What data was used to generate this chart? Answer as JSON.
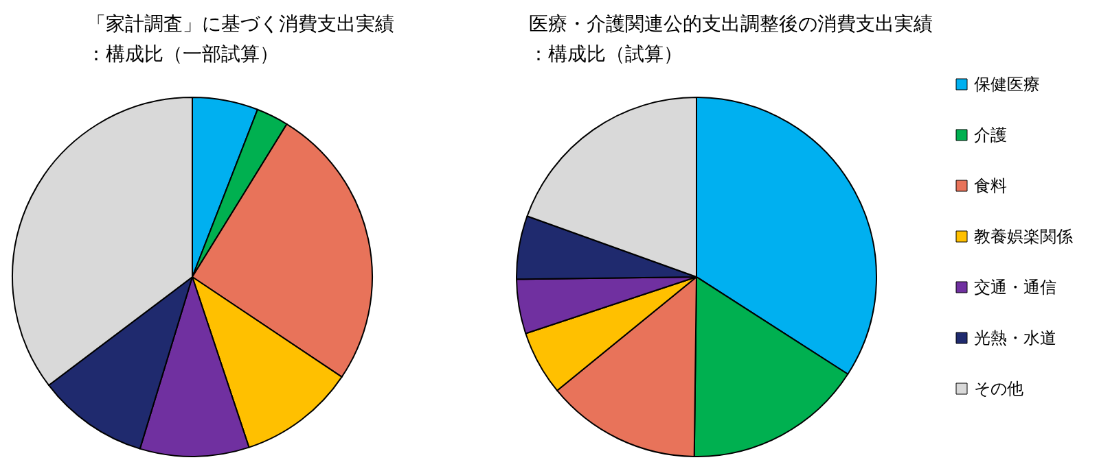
{
  "chart_data": [
    {
      "type": "pie",
      "title": "「家計調査」に基づく消費支出実績",
      "subtitle": "：構成比（一部試算）",
      "categories": [
        null,
        null,
        null,
        null,
        null,
        null,
        null
      ],
      "values": [
        5.9,
        2.9,
        25.6,
        10.5,
        9.8,
        10.0,
        35.3
      ],
      "colors": [
        "#00b0f0",
        "#00b050",
        "#e8735a",
        "#ffc000",
        "#7030a0",
        "#1f2a6e",
        "#d9d9d9"
      ],
      "legend": false
    },
    {
      "type": "pie",
      "title": "医療・介護関連公的支出調整後の消費支出実績",
      "subtitle": "：構成比（試算）",
      "categories": [
        "保健医療",
        "介護",
        "食料",
        "教養娯楽関係",
        "交通・通信",
        "光熱・水道",
        "その他"
      ],
      "values": [
        34.1,
        16.1,
        13.9,
        5.8,
        4.9,
        5.7,
        19.5
      ],
      "colors": [
        "#00b0f0",
        "#00b050",
        "#e8735a",
        "#ffc000",
        "#7030a0",
        "#1f2a6e",
        "#d9d9d9"
      ],
      "legend": "right"
    }
  ]
}
